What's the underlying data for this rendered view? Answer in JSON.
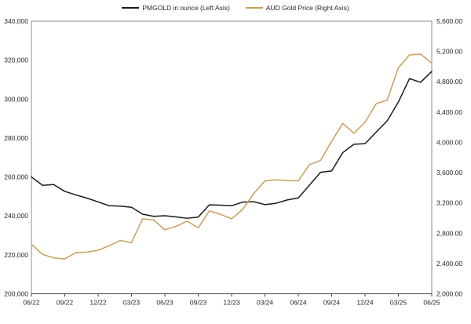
{
  "chart_data": {
    "type": "line",
    "title": "",
    "grid": false,
    "legend_position": "top",
    "legend": [
      "PMGOLD in ounce (Left Axis)",
      "AUD Gold Price (Right Axis)"
    ],
    "x": [
      "06/22",
      "07/22",
      "08/22",
      "09/22",
      "10/22",
      "11/22",
      "12/22",
      "01/23",
      "02/23",
      "03/23",
      "04/23",
      "05/23",
      "06/23",
      "07/23",
      "08/23",
      "09/23",
      "10/23",
      "11/23",
      "12/23",
      "01/24",
      "02/24",
      "03/24",
      "04/24",
      "05/24",
      "06/24",
      "07/24",
      "08/24",
      "09/24",
      "10/24",
      "11/24",
      "12/24",
      "01/25",
      "02/25",
      "03/25",
      "04/25",
      "05/25",
      "06/25"
    ],
    "x_tick_labels": [
      "06/22",
      "09/22",
      "12/22",
      "03/23",
      "06/23",
      "09/23",
      "12/23",
      "03/24",
      "06/24",
      "09/24",
      "12/24",
      "03/25",
      "06/25"
    ],
    "series": [
      {
        "name": "PMGOLD in ounce (Left Axis)",
        "axis": "left",
        "color": "#1a1a1a",
        "values": [
          260000,
          255700,
          256100,
          252600,
          250800,
          249100,
          247200,
          245200,
          245000,
          244400,
          240900,
          239800,
          240100,
          239500,
          238800,
          239400,
          245700,
          245500,
          245200,
          247100,
          247300,
          245800,
          246500,
          248200,
          249200,
          255800,
          262400,
          263100,
          272500,
          276800,
          277100,
          283000,
          288900,
          298500,
          310500,
          308600,
          314200
        ]
      },
      {
        "name": "AUD Gold Price (Right Axis)",
        "axis": "right",
        "color": "#c5a059",
        "values": [
          2655,
          2520,
          2475,
          2460,
          2545,
          2550,
          2575,
          2635,
          2705,
          2675,
          2990,
          2975,
          2845,
          2890,
          2960,
          2870,
          3095,
          3050,
          2990,
          3115,
          3325,
          3490,
          3505,
          3495,
          3490,
          3705,
          3760,
          4015,
          4250,
          4120,
          4265,
          4510,
          4560,
          4985,
          5155,
          5165,
          5045
        ]
      }
    ],
    "left_axis": {
      "min": 200000,
      "max": 340000,
      "step": 20000,
      "tick_labels": [
        "200,000",
        "220,000",
        "240,000",
        "260,000",
        "280,000",
        "300,000",
        "320,000",
        "340,000"
      ]
    },
    "right_axis": {
      "min": 2000,
      "max": 5600,
      "step": 400,
      "tick_labels": [
        "2,000.00",
        "2,400.00",
        "2,800.00",
        "3,200.00",
        "3,600.00",
        "4,000.00",
        "4,400.00",
        "4,800.00",
        "5,200.00",
        "5,600.00"
      ]
    }
  },
  "colors": {
    "plot_border": "#8c8c8c",
    "axis_line": "#404040",
    "tick_mark": "#404040",
    "label_text": "#262626",
    "background": "#ffffff"
  }
}
